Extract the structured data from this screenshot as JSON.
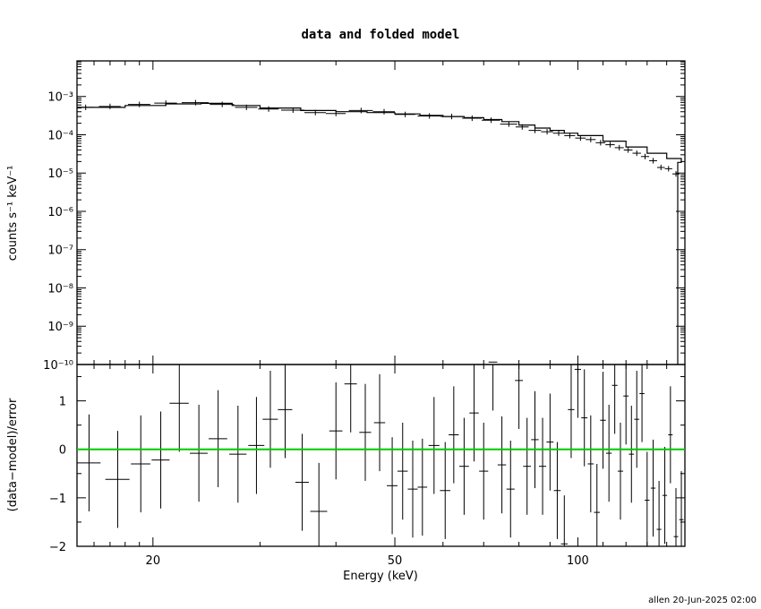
{
  "chart_data": [
    {
      "type": "line",
      "title": "data and folded model",
      "ylabel": "counts s⁻¹ keV⁻¹",
      "y_scale": "log",
      "x_scale": "log",
      "xlim": [
        15,
        150
      ],
      "ylim": [
        1e-10,
        0.0085
      ],
      "ytick_labels": [
        "10⁻³",
        "10⁻⁴",
        "10⁻⁵",
        "10⁻⁶",
        "10⁻⁷",
        "10⁻⁸",
        "10⁻⁹",
        "10⁻¹⁰"
      ],
      "series": [
        {
          "kind": "data",
          "points": [
            {
              "x": 15.5,
              "xerr": [
                0.5,
                0.5
              ],
              "y": 0.00052
            },
            {
              "x": 17.0,
              "xerr": [
                0.7,
                0.7
              ],
              "y": 0.00055
            },
            {
              "x": 19.0,
              "xerr": [
                0.8,
                0.8
              ],
              "y": 0.00062
            },
            {
              "x": 21.0,
              "xerr": [
                0.9,
                0.9
              ],
              "y": 0.00067
            },
            {
              "x": 23.5,
              "xerr": [
                1.2,
                1.2
              ],
              "y": 0.00069
            },
            {
              "x": 26.0,
              "xerr": [
                1.2,
                1.2
              ],
              "y": 0.00062
            },
            {
              "x": 28.5,
              "xerr": [
                1.2,
                1.2
              ],
              "y": 0.00052
            },
            {
              "x": 31.0,
              "xerr": [
                1.2,
                1.2
              ],
              "y": 0.00047
            },
            {
              "x": 34.0,
              "xerr": [
                1.5,
                1.5
              ],
              "y": 0.00044
            },
            {
              "x": 37.0,
              "xerr": [
                1.5,
                1.5
              ],
              "y": 0.00038
            },
            {
              "x": 40.0,
              "xerr": [
                1.5,
                1.5
              ],
              "y": 0.00036
            },
            {
              "x": 44.0,
              "xerr": [
                2.0,
                2.0
              ],
              "y": 0.00043
            },
            {
              "x": 48.0,
              "xerr": [
                2.0,
                2.0
              ],
              "y": 0.0004
            },
            {
              "x": 52.0,
              "xerr": [
                2.0,
                2.0
              ],
              "y": 0.00034
            },
            {
              "x": 57.0,
              "xerr": [
                2.5,
                2.5
              ],
              "y": 0.00031
            },
            {
              "x": 62.0,
              "xerr": [
                2.5,
                2.5
              ],
              "y": 0.0003
            },
            {
              "x": 67.0,
              "xerr": [
                2.5,
                2.5
              ],
              "y": 0.00027
            },
            {
              "x": 72.0,
              "xerr": [
                2.5,
                2.5
              ],
              "y": 0.00024
            },
            {
              "x": 77.0,
              "xerr": [
                2.5,
                2.5
              ],
              "y": 0.00019
            },
            {
              "x": 81.0,
              "xerr": [
                2.0,
                2.0
              ],
              "y": 0.00016
            },
            {
              "x": 85.0,
              "xerr": [
                2.0,
                2.0
              ],
              "y": 0.00013
            },
            {
              "x": 89.0,
              "xerr": [
                2.0,
                2.0
              ],
              "y": 0.00012
            },
            {
              "x": 93.0,
              "xerr": [
                2.0,
                2.0
              ],
              "y": 0.00011
            },
            {
              "x": 97.0,
              "xerr": [
                2.0,
                2.0
              ],
              "y": 9.5e-05
            },
            {
              "x": 101.0,
              "xerr": [
                2.0,
                2.0
              ],
              "y": 8.2e-05
            },
            {
              "x": 105.0,
              "xerr": [
                2.0,
                2.0
              ],
              "y": 7.5e-05
            },
            {
              "x": 109.0,
              "xerr": [
                2.0,
                2.0
              ],
              "y": 6.2e-05
            },
            {
              "x": 113.0,
              "xerr": [
                2.0,
                2.0
              ],
              "y": 5.5e-05
            },
            {
              "x": 117.0,
              "xerr": [
                2.0,
                2.0
              ],
              "y": 4.6e-05
            },
            {
              "x": 121.0,
              "xerr": [
                2.0,
                2.0
              ],
              "y": 4e-05
            },
            {
              "x": 125.0,
              "xerr": [
                2.0,
                2.0
              ],
              "y": 3.3e-05
            },
            {
              "x": 129.0,
              "xerr": [
                2.0,
                2.0
              ],
              "y": 2.7e-05
            },
            {
              "x": 133.0,
              "xerr": [
                2.0,
                2.0
              ],
              "y": 2.1e-05
            },
            {
              "x": 137.0,
              "xerr": [
                2.0,
                2.0
              ],
              "y": 1.4e-05
            },
            {
              "x": 141.0,
              "xerr": [
                2.0,
                2.0
              ],
              "y": 1.3e-05
            },
            {
              "x": 145.0,
              "xerr": [
                2.0,
                2.0
              ],
              "y": 9.5e-06
            }
          ]
        },
        {
          "kind": "model",
          "points": [
            {
              "x": 15.0,
              "y": 0.00052
            },
            {
              "x": 18.0,
              "y": 0.00058
            },
            {
              "x": 21.0,
              "y": 0.00064
            },
            {
              "x": 24.0,
              "y": 0.00066
            },
            {
              "x": 27.0,
              "y": 0.00058
            },
            {
              "x": 30.0,
              "y": 0.0005
            },
            {
              "x": 35.0,
              "y": 0.00043
            },
            {
              "x": 40.0,
              "y": 0.0004
            },
            {
              "x": 45.0,
              "y": 0.00038
            },
            {
              "x": 50.0,
              "y": 0.00035
            },
            {
              "x": 55.0,
              "y": 0.00032
            },
            {
              "x": 60.0,
              "y": 0.0003
            },
            {
              "x": 65.0,
              "y": 0.00028
            },
            {
              "x": 70.0,
              "y": 0.00025
            },
            {
              "x": 75.0,
              "y": 0.00022
            },
            {
              "x": 80.0,
              "y": 0.00018
            },
            {
              "x": 85.0,
              "y": 0.00015
            },
            {
              "x": 90.0,
              "y": 0.00013
            },
            {
              "x": 95.0,
              "y": 0.00011
            },
            {
              "x": 100.0,
              "y": 9.5e-05
            },
            {
              "x": 110.0,
              "y": 6.8e-05
            },
            {
              "x": 120.0,
              "y": 4.8e-05
            },
            {
              "x": 130.0,
              "y": 3.3e-05
            },
            {
              "x": 140.0,
              "y": 2.4e-05
            },
            {
              "x": 148.0,
              "y": 1.9e-05
            }
          ]
        }
      ]
    },
    {
      "type": "scatter",
      "xlabel": "Energy (keV)",
      "ylabel": "(data−model)/error",
      "x_scale": "log",
      "xlim": [
        15,
        150
      ],
      "ylim": [
        -2,
        1.75
      ],
      "xtick_labels": [
        "20",
        "50",
        "100"
      ],
      "ytick_labels": [
        "1",
        "0",
        "−1",
        "−2"
      ],
      "zero_line_color": "#00cc00",
      "points": [
        {
          "x": 15.7,
          "xerr": [
            0.7,
            0.7
          ],
          "y": -0.28
        },
        {
          "x": 17.5,
          "xerr": [
            0.8,
            0.8
          ],
          "y": -0.62
        },
        {
          "x": 19.1,
          "xerr": [
            0.7,
            0.7
          ],
          "y": -0.3
        },
        {
          "x": 20.6,
          "xerr": [
            0.7,
            0.7
          ],
          "y": -0.22
        },
        {
          "x": 22.1,
          "xerr": [
            0.8,
            0.8
          ],
          "y": 0.95
        },
        {
          "x": 23.8,
          "xerr": [
            0.8,
            0.8
          ],
          "y": -0.08
        },
        {
          "x": 25.6,
          "xerr": [
            0.9,
            0.9
          ],
          "y": 0.22
        },
        {
          "x": 27.6,
          "xerr": [
            0.9,
            0.9
          ],
          "y": -0.1
        },
        {
          "x": 29.6,
          "xerr": [
            0.9,
            0.9
          ],
          "y": 0.08
        },
        {
          "x": 31.2,
          "xerr": [
            0.9,
            0.9
          ],
          "y": 0.62
        },
        {
          "x": 33.0,
          "xerr": [
            0.9,
            0.9
          ],
          "y": 0.82
        },
        {
          "x": 35.2,
          "xerr": [
            0.9,
            0.9
          ],
          "y": -0.68
        },
        {
          "x": 37.5,
          "xerr": [
            1.2,
            1.2
          ],
          "y": -1.28
        },
        {
          "x": 40.0,
          "xerr": [
            1.0,
            1.0
          ],
          "y": 0.38
        },
        {
          "x": 42.3,
          "xerr": [
            1.0,
            1.0
          ],
          "y": 1.35
        },
        {
          "x": 44.7,
          "xerr": [
            1.0,
            1.0
          ],
          "y": 0.35
        },
        {
          "x": 47.2,
          "xerr": [
            1.0,
            1.0
          ],
          "y": 0.55
        },
        {
          "x": 49.5,
          "xerr": [
            1.0,
            1.0
          ],
          "y": -0.75
        },
        {
          "x": 51.5,
          "xerr": [
            1.0,
            1.0
          ],
          "y": -0.45
        },
        {
          "x": 53.5,
          "xerr": [
            1.0,
            1.0
          ],
          "y": -0.82
        },
        {
          "x": 55.5,
          "xerr": [
            1.0,
            1.0
          ],
          "y": -0.78
        },
        {
          "x": 58.0,
          "xerr": [
            1.2,
            1.2
          ],
          "y": 0.08
        },
        {
          "x": 60.5,
          "xerr": [
            1.2,
            1.2
          ],
          "y": -0.85
        },
        {
          "x": 62.5,
          "xerr": [
            1.2,
            1.2
          ],
          "y": 0.3
        },
        {
          "x": 65.0,
          "xerr": [
            1.2,
            1.2
          ],
          "y": -0.35
        },
        {
          "x": 67.5,
          "xerr": [
            1.2,
            1.2
          ],
          "y": 0.75
        },
        {
          "x": 70.0,
          "xerr": [
            1.2,
            1.2
          ],
          "y": -0.45
        },
        {
          "x": 72.5,
          "xerr": [
            1.2,
            1.2
          ],
          "y": 1.8
        },
        {
          "x": 75.0,
          "xerr": [
            1.2,
            1.2
          ],
          "y": -0.32
        },
        {
          "x": 77.5,
          "xerr": [
            1.2,
            1.2
          ],
          "y": -0.82
        },
        {
          "x": 80.0,
          "xerr": [
            1.2,
            1.2
          ],
          "y": 1.42
        },
        {
          "x": 82.5,
          "xerr": [
            1.2,
            1.2
          ],
          "y": -0.35
        },
        {
          "x": 85.0,
          "xerr": [
            1.2,
            1.2
          ],
          "y": 0.2
        },
        {
          "x": 87.5,
          "xerr": [
            1.2,
            1.2
          ],
          "y": -0.35
        },
        {
          "x": 90.0,
          "xerr": [
            1.2,
            1.2
          ],
          "y": 0.15
        },
        {
          "x": 92.5,
          "xerr": [
            1.2,
            1.2
          ],
          "y": -0.85
        },
        {
          "x": 95.0,
          "xerr": [
            1.2,
            1.2
          ],
          "y": -1.95
        },
        {
          "x": 97.5,
          "xerr": [
            1.2,
            1.2
          ],
          "y": 0.82
        },
        {
          "x": 100.0,
          "xerr": [
            1.2,
            1.2
          ],
          "y": 1.65
        },
        {
          "x": 102.5,
          "xerr": [
            1.2,
            1.2
          ],
          "y": 0.65
        },
        {
          "x": 105.0,
          "xerr": [
            1.2,
            1.2
          ],
          "y": -0.3
        },
        {
          "x": 107.5,
          "xerr": [
            1.2,
            1.2
          ],
          "y": -1.3
        },
        {
          "x": 110.0,
          "xerr": [
            1.2,
            1.2
          ],
          "y": 0.6
        },
        {
          "x": 112.5,
          "xerr": [
            1.2,
            1.2
          ],
          "y": -0.08
        },
        {
          "x": 115.0,
          "xerr": [
            1.2,
            1.2
          ],
          "y": 1.32
        },
        {
          "x": 117.5,
          "xerr": [
            1.2,
            1.2
          ],
          "y": -0.45
        },
        {
          "x": 120.0,
          "xerr": [
            1.2,
            1.2
          ],
          "y": 1.1
        },
        {
          "x": 122.5,
          "xerr": [
            1.2,
            1.2
          ],
          "y": -0.1
        },
        {
          "x": 125.0,
          "xerr": [
            1.2,
            1.2
          ],
          "y": 0.62
        },
        {
          "x": 127.5,
          "xerr": [
            1.2,
            1.2
          ],
          "y": 1.15
        },
        {
          "x": 130.0,
          "xerr": [
            1.2,
            1.2
          ],
          "y": -1.05
        },
        {
          "x": 133.0,
          "xerr": [
            1.2,
            1.2
          ],
          "y": -0.8
        },
        {
          "x": 136.0,
          "xerr": [
            1.2,
            1.2
          ],
          "y": -1.65
        },
        {
          "x": 139.0,
          "xerr": [
            1.2,
            1.2
          ],
          "y": -0.95
        },
        {
          "x": 142.0,
          "xerr": [
            1.2,
            1.2
          ],
          "y": 0.3
        },
        {
          "x": 145.0,
          "xerr": [
            1.2,
            1.2
          ],
          "y": -1.8
        },
        {
          "x": 148.0,
          "xerr": [
            1.2,
            1.2
          ],
          "y": -1.45
        }
      ]
    }
  ],
  "footer": "allen 20-Jun-2025 02:00"
}
